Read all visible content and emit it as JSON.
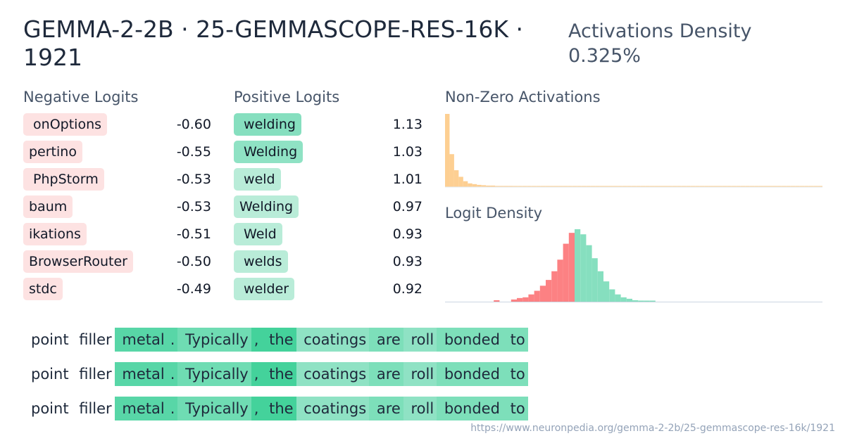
{
  "header": {
    "title": "GEMMA-2-2B · 25-GEMMASCOPE-RES-16K · 1921",
    "density_label": "Activations Density",
    "density_value": "0.325%"
  },
  "negative": {
    "heading": "Negative Logits",
    "items": [
      {
        "token": " onOptions",
        "value": "-0.60"
      },
      {
        "token": "pertino",
        "value": "-0.55"
      },
      {
        "token": " PhpStorm",
        "value": "-0.53"
      },
      {
        "token": "baum",
        "value": "-0.53"
      },
      {
        "token": "ikations",
        "value": "-0.51"
      },
      {
        "token": "BrowserRouter",
        "value": "-0.50"
      },
      {
        "token": "stdc",
        "value": "-0.49"
      }
    ]
  },
  "positive": {
    "heading": "Positive Logits",
    "items": [
      {
        "token": " welding",
        "value": "1.13",
        "color": "#86dfbf"
      },
      {
        "token": " Welding",
        "value": "1.03",
        "color": "#8fe2c4"
      },
      {
        "token": " weld",
        "value": "1.01",
        "color": "#b9ecd8"
      },
      {
        "token": "Welding",
        "value": "0.97",
        "color": "#b9ecd8"
      },
      {
        "token": " Weld",
        "value": "0.93",
        "color": "#b9ecd8"
      },
      {
        "token": " welds",
        "value": "0.93",
        "color": "#b9ecd8"
      },
      {
        "token": " welder",
        "value": "0.92",
        "color": "#b9ecd8"
      }
    ]
  },
  "nonzero": {
    "heading": "Non-Zero Activations",
    "color": "#fdcf92",
    "bars": [
      1.0,
      0.45,
      0.23,
      0.14,
      0.08,
      0.05,
      0.04,
      0.03,
      0.025,
      0.02,
      0.02,
      0.015,
      0.015,
      0.015,
      0.015,
      0.012,
      0.012,
      0.012,
      0.012,
      0.012,
      0.012,
      0.012,
      0.012,
      0.012,
      0.012,
      0.012,
      0.012,
      0.012,
      0.012,
      0.012,
      0.012,
      0.012,
      0.012,
      0.012,
      0.012,
      0.012,
      0.012,
      0.012,
      0.012,
      0.012,
      0.012,
      0.012,
      0.012,
      0.012,
      0.012,
      0.012,
      0.012,
      0.012,
      0.012,
      0.012,
      0.012,
      0.012,
      0.012,
      0.012,
      0.012,
      0.012,
      0.012,
      0.012,
      0.012,
      0.012,
      0.012,
      0.012,
      0.012,
      0.012,
      0.012,
      0.012,
      0.012,
      0.012,
      0.012,
      0.012,
      0.012,
      0.012,
      0.012,
      0.012,
      0.012,
      0.012,
      0.012,
      0.012,
      0.012,
      0.012,
      0.012,
      0.012,
      0.012
    ]
  },
  "logit_density": {
    "heading": "Logit Density",
    "neg_color": "#fc8183",
    "pos_color": "#86dfbf",
    "neg_bars": [
      0.0,
      0.0,
      0.0,
      0.0,
      0.0,
      0.0,
      0.0,
      0.0,
      0.0,
      0.0,
      0.0,
      0.0,
      0.0,
      0.0,
      0.0,
      0.0,
      0.0,
      0.0,
      0.0,
      0.0,
      0.0,
      0.0,
      0.0,
      0.0,
      0.0,
      0.0,
      0.0,
      0.0,
      0.0,
      0.0,
      0.0,
      0.0,
      0.0,
      0.0,
      0.0,
      0.0,
      0.0,
      0.0,
      0.0,
      0.0,
      0.0,
      0.0,
      0.0,
      0.0,
      0.0,
      0.0,
      0.0,
      0.0,
      0.0,
      0.0,
      0.0,
      0.0,
      0.0,
      0.0,
      0.0,
      0.0,
      0.0,
      0.0,
      0.0,
      0.0,
      0.0,
      0.0,
      0.0,
      0.0,
      0.0,
      0.0,
      0.0,
      0.0,
      0.0,
      0.0,
      0.0,
      0.0,
      0.0,
      0.0,
      0.0,
      0.0,
      0.02,
      0.0,
      0.0,
      0.03,
      0.05,
      0.06,
      0.1,
      0.15,
      0.22,
      0.3,
      0.42,
      0.58,
      0.8,
      0.95
    ],
    "pos_bars": [
      1.0,
      0.93,
      0.78,
      0.6,
      0.42,
      0.28,
      0.17,
      0.1,
      0.06,
      0.04,
      0.02,
      0.015,
      0.01,
      0.005
    ]
  },
  "examples": {
    "rows": [
      [
        {
          "text": "point",
          "bg": ""
        },
        {
          "text": " filler",
          "bg": ""
        },
        {
          "text": " metal",
          "bg": "#58d6a7"
        },
        {
          "text": ".",
          "bg": "#58d6a7"
        },
        {
          "text": " Typically",
          "bg": "#6fdcb3"
        },
        {
          "text": ",",
          "bg": "#44d29b"
        },
        {
          "text": " the",
          "bg": "#44d29b"
        },
        {
          "text": " coatings",
          "bg": "#8fe2c4"
        },
        {
          "text": " are",
          "bg": "#7ddfba"
        },
        {
          "text": " roll",
          "bg": "#8fe2c4"
        },
        {
          "text": " bonded",
          "bg": "#7ddfba"
        },
        {
          "text": " to",
          "bg": "#7ddfba"
        }
      ],
      [
        {
          "text": "point",
          "bg": ""
        },
        {
          "text": " filler",
          "bg": ""
        },
        {
          "text": " metal",
          "bg": "#58d6a7"
        },
        {
          "text": ".",
          "bg": "#58d6a7"
        },
        {
          "text": " Typically",
          "bg": "#6fdcb3"
        },
        {
          "text": ",",
          "bg": "#44d29b"
        },
        {
          "text": " the",
          "bg": "#44d29b"
        },
        {
          "text": " coatings",
          "bg": "#8fe2c4"
        },
        {
          "text": " are",
          "bg": "#7ddfba"
        },
        {
          "text": " roll",
          "bg": "#8fe2c4"
        },
        {
          "text": " bonded",
          "bg": "#7ddfba"
        },
        {
          "text": " to",
          "bg": "#7ddfba"
        }
      ],
      [
        {
          "text": "point",
          "bg": ""
        },
        {
          "text": " filler",
          "bg": ""
        },
        {
          "text": " metal",
          "bg": "#58d6a7"
        },
        {
          "text": ".",
          "bg": "#58d6a7"
        },
        {
          "text": " Typically",
          "bg": "#6fdcb3"
        },
        {
          "text": ",",
          "bg": "#44d29b"
        },
        {
          "text": " the",
          "bg": "#44d29b"
        },
        {
          "text": " coatings",
          "bg": "#8fe2c4"
        },
        {
          "text": " are",
          "bg": "#7ddfba"
        },
        {
          "text": " roll",
          "bg": "#8fe2c4"
        },
        {
          "text": " bonded",
          "bg": "#7ddfba"
        },
        {
          "text": " to",
          "bg": "#7ddfba"
        }
      ]
    ]
  },
  "footer": {
    "url": "https://www.neuronpedia.org/gemma-2-2b/25-gemmascope-res-16k/1921"
  }
}
